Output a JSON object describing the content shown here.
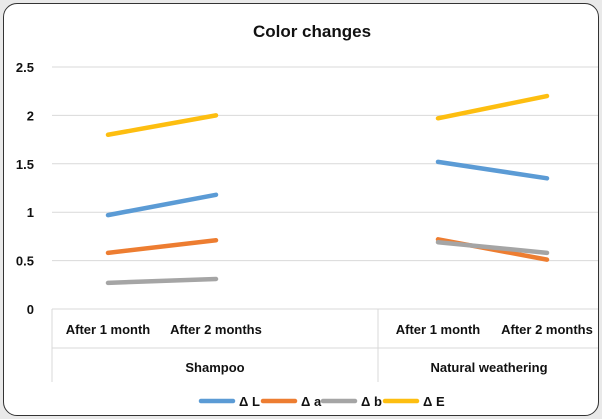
{
  "chart_data": {
    "type": "line",
    "title": "Color changes",
    "xlabel": "",
    "ylabel": "",
    "ylim": [
      0,
      2.5
    ],
    "yticks": [
      "0",
      "0.5",
      "1",
      "1.5",
      "2",
      "2.5"
    ],
    "grid": true,
    "legend_position": "bottom",
    "groups": [
      {
        "name": "Shampoo",
        "categories": [
          "After 1 month",
          "After 2 months"
        ]
      },
      {
        "name": "Natural weathering",
        "categories": [
          "After 1 month",
          "After 2 months"
        ]
      }
    ],
    "series": [
      {
        "name": "Δ L",
        "color": "#5b9bd5",
        "values": [
          [
            0.97,
            1.18
          ],
          [
            1.52,
            1.35
          ]
        ]
      },
      {
        "name": "Δ a",
        "color": "#ed7d31",
        "values": [
          [
            0.58,
            0.71
          ],
          [
            0.72,
            0.51
          ]
        ]
      },
      {
        "name": "Δ b",
        "color": "#a5a5a5",
        "values": [
          [
            0.27,
            0.31
          ],
          [
            0.69,
            0.58
          ]
        ]
      },
      {
        "name": "Δ E",
        "color": "#fdbe10",
        "values": [
          [
            1.8,
            2.0
          ],
          [
            1.97,
            2.2
          ]
        ]
      }
    ]
  }
}
